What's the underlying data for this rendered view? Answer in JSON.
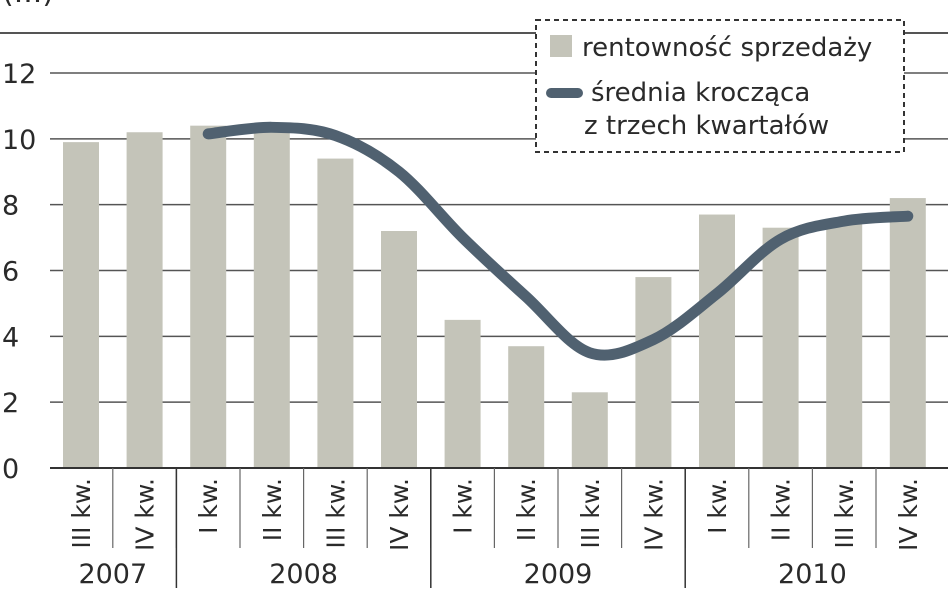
{
  "chart_data": {
    "type": "bar",
    "title_fragment": "(...)",
    "categories": [
      "III kw.",
      "IV kw.",
      "I kw.",
      "II kw.",
      "III kw.",
      "IV kw.",
      "I kw.",
      "II kw.",
      "III kw.",
      "IV kw.",
      "I kw.",
      "II kw.",
      "III kw.",
      "IV kw."
    ],
    "years": [
      {
        "label": "2007",
        "start": 0,
        "end": 1
      },
      {
        "label": "2008",
        "start": 2,
        "end": 5
      },
      {
        "label": "2009",
        "start": 6,
        "end": 9
      },
      {
        "label": "2010",
        "start": 10,
        "end": 13
      }
    ],
    "series": [
      {
        "name": "rentowność sprzedaży",
        "kind": "bar",
        "color": "#c4c4b9",
        "values": [
          9.9,
          10.2,
          10.4,
          10.2,
          9.4,
          7.2,
          4.5,
          3.7,
          2.3,
          5.8,
          7.7,
          7.3,
          7.5,
          8.2
        ]
      },
      {
        "name_lines": [
          "średnia krocząca",
          "z trzech kwartałów"
        ],
        "kind": "line",
        "color": "#506170",
        "values": [
          null,
          null,
          10.15,
          10.35,
          10.1,
          9.0,
          7.0,
          5.2,
          3.5,
          3.9,
          5.3,
          6.95,
          7.5,
          7.65
        ]
      }
    ],
    "ylim": [
      0,
      12
    ],
    "yticks": [
      "0",
      "2",
      "4",
      "6",
      "8",
      "10",
      "12"
    ],
    "grid": true,
    "legend_position": "top-right"
  }
}
